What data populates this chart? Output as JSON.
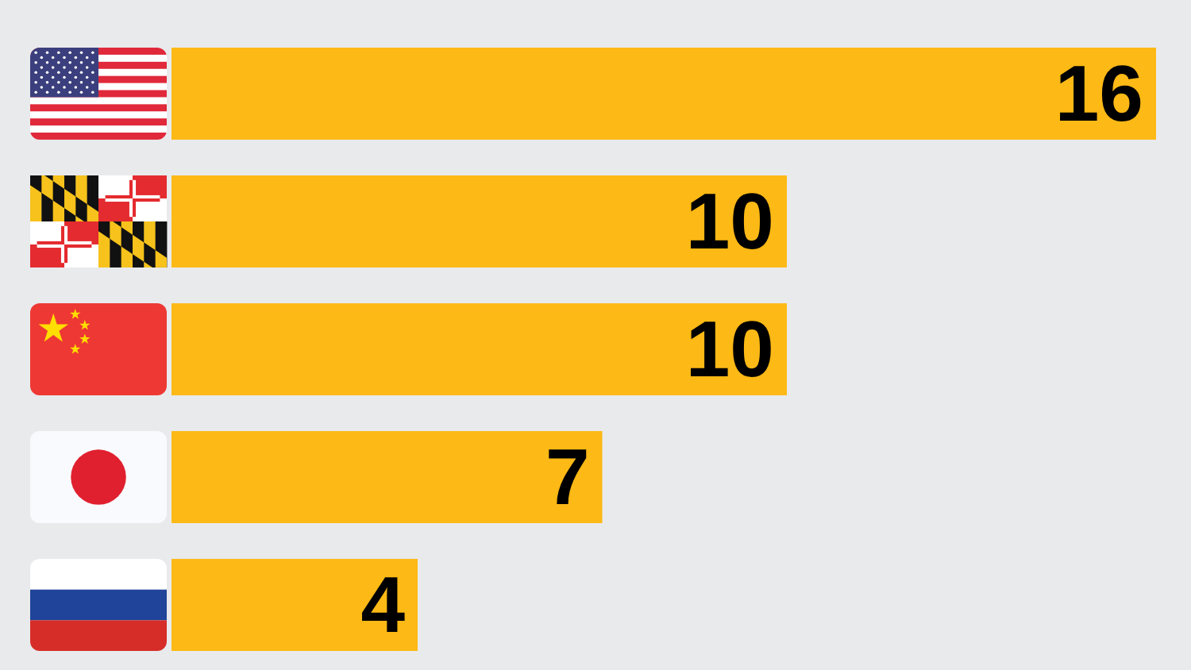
{
  "chart_data": {
    "type": "bar",
    "orientation": "horizontal",
    "categories": [
      null,
      null,
      null,
      null,
      null
    ],
    "values": [
      16,
      10,
      10,
      7,
      4
    ],
    "color": "#fdb915",
    "data_labels": true
  }
}
